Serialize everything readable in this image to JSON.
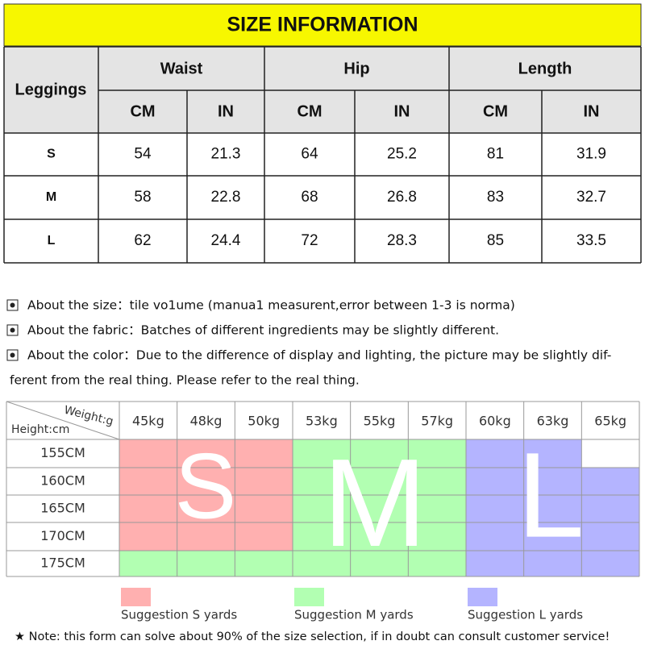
{
  "header": {
    "title": "SIZE INFORMATION"
  },
  "size_table": {
    "corner": "Leggings",
    "groups": [
      "Waist",
      "Hip",
      "Length"
    ],
    "units": [
      "CM",
      "IN",
      "CM",
      "IN",
      "CM",
      "IN"
    ],
    "rows": [
      [
        "S",
        "54",
        "21.3",
        "64",
        "25.2",
        "81",
        "31.9"
      ],
      [
        "M",
        "58",
        "22.8",
        "68",
        "26.8",
        "83",
        "32.7"
      ],
      [
        "L",
        "62",
        "24.4",
        "72",
        "28.3",
        "85",
        "33.5"
      ]
    ]
  },
  "notes": [
    [
      "About the size：tile vo1ume (manua1 measurent,error between 1-3 is norma)"
    ],
    [
      "About the fabric：Batches of different ingredients may be slightly different."
    ],
    [
      "About the color：Due to the difference of display and lighting, the picture may be slightly dif-",
      "ferent from the real thing. Please refer to the real thing."
    ]
  ],
  "weight_table": {
    "weight_label": "Weight:g",
    "height_label": "Height:cm",
    "weights": [
      "45kg",
      "48kg",
      "50kg",
      "53kg",
      "55kg",
      "57kg",
      "60kg",
      "63kg",
      "65kg"
    ],
    "heights": [
      "155CM",
      "160CM",
      "165CM",
      "170CM",
      "175CM"
    ],
    "big_letters": [
      "S",
      "M",
      "L"
    ]
  },
  "legend": [
    "Suggestion S yards",
    "Suggestion M yards",
    "Suggestion L yards"
  ],
  "footer": "★ Note: this form can solve about 90% of the size selection, if in doubt can consult customer service!"
}
